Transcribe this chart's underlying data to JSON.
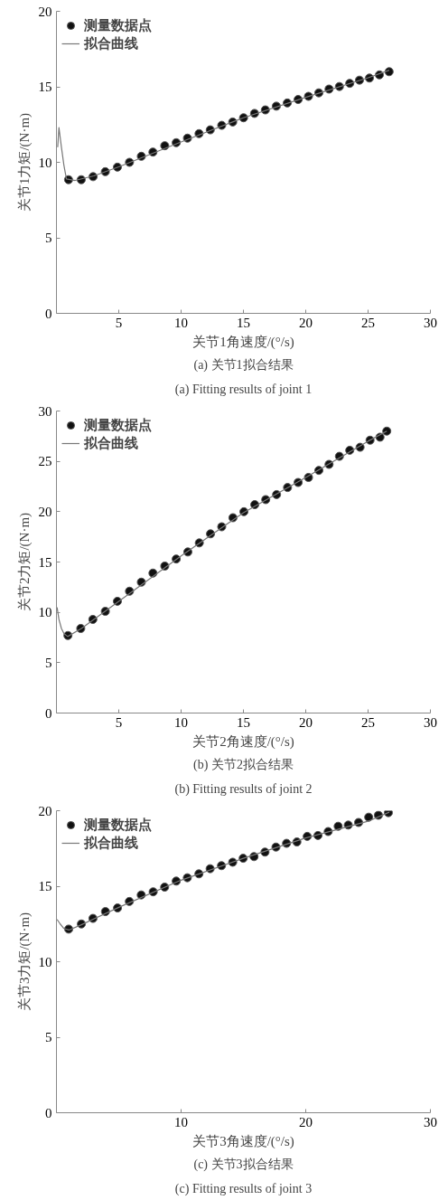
{
  "chart_data": [
    {
      "type": "scatter",
      "xlabel": "关节1角速度/(°/s)",
      "ylabel": "关节1力矩/(N·m)",
      "xlim": [
        0,
        30
      ],
      "ylim": [
        0,
        20
      ],
      "xticks": [
        5,
        10,
        15,
        20,
        25,
        30
      ],
      "yticks": [
        0,
        5,
        10,
        15,
        20
      ],
      "grid": false,
      "legend": "top left",
      "annotations": [
        "(a) 关节1拟合结果",
        "(a) Fitting results of joint 1"
      ],
      "series": [
        {
          "name": "测量数据点",
          "marker": "circle",
          "color": "#111111",
          "x": [
            0.97,
            1.99,
            2.94,
            3.92,
            4.89,
            5.86,
            6.81,
            7.74,
            8.69,
            9.61,
            10.51,
            11.44,
            12.34,
            13.26,
            14.14,
            15.01,
            15.89,
            16.76,
            17.64,
            18.52,
            19.39,
            20.22,
            21.05,
            21.87,
            22.7,
            23.53,
            24.31,
            25.11,
            25.91,
            26.69
          ],
          "values": [
            8.85,
            8.85,
            9.05,
            9.38,
            9.68,
            10.0,
            10.4,
            10.68,
            11.1,
            11.3,
            11.6,
            11.9,
            12.15,
            12.45,
            12.67,
            12.95,
            13.24,
            13.47,
            13.72,
            13.93,
            14.16,
            14.37,
            14.6,
            14.85,
            15.02,
            15.23,
            15.44,
            15.58,
            15.79,
            16.0
          ]
        },
        {
          "name": "拟合曲线",
          "type": "line",
          "color": "#777777",
          "x": [
            0.1,
            0.2,
            0.4,
            0.6,
            0.8,
            1.5,
            3.0,
            5.0,
            10.0,
            15.0,
            20.0,
            25.0,
            26.7
          ],
          "values": [
            11.0,
            12.3,
            11.0,
            9.8,
            8.9,
            8.8,
            9.1,
            9.7,
            11.35,
            12.95,
            14.3,
            15.6,
            16.1
          ]
        }
      ]
    },
    {
      "type": "scatter",
      "xlabel": "关节2角速度/(°/s)",
      "ylabel": "关节2力矩/(N·m)",
      "xlim": [
        0,
        30
      ],
      "ylim": [
        0,
        30
      ],
      "xticks": [
        5,
        10,
        15,
        20,
        25,
        30
      ],
      "yticks": [
        0,
        5,
        10,
        15,
        20,
        25,
        30
      ],
      "grid": false,
      "legend": "top left",
      "annotations": [
        "(b) 关节2拟合结果",
        "(b) Fitting results of joint 2"
      ],
      "series": [
        {
          "name": "测量数据点",
          "marker": "circle",
          "color": "#111111",
          "x": [
            0.92,
            1.95,
            2.92,
            3.92,
            4.89,
            5.86,
            6.81,
            7.74,
            8.69,
            9.61,
            10.54,
            11.46,
            12.36,
            13.26,
            14.16,
            15.04,
            15.91,
            16.79,
            17.66,
            18.54,
            19.39,
            20.22,
            21.05,
            21.87,
            22.7,
            23.53,
            24.36,
            25.16,
            25.96,
            26.5
          ],
          "values": [
            7.7,
            8.4,
            9.3,
            10.1,
            11.1,
            12.1,
            13.0,
            13.9,
            14.6,
            15.3,
            16.0,
            16.9,
            17.8,
            18.5,
            19.4,
            20.0,
            20.7,
            21.2,
            21.7,
            22.4,
            22.9,
            23.4,
            24.1,
            24.7,
            25.5,
            26.1,
            26.4,
            27.1,
            27.4,
            28.0
          ]
        },
        {
          "name": "拟合曲线",
          "type": "line",
          "color": "#777777",
          "x": [
            0.05,
            0.2,
            0.4,
            0.6,
            0.9,
            2.0,
            5.0,
            10.0,
            15.0,
            20.0,
            25.0,
            26.5
          ],
          "values": [
            10.5,
            9.3,
            8.4,
            7.9,
            7.6,
            8.4,
            11.1,
            15.6,
            19.9,
            23.4,
            27.0,
            28.0
          ]
        }
      ]
    },
    {
      "type": "scatter",
      "xlabel": "关节3角速度/(°/s)",
      "ylabel": "关节3力矩/(N·m)",
      "xlim": [
        0,
        30
      ],
      "ylim": [
        0,
        20
      ],
      "xticks": [
        10,
        20,
        30
      ],
      "yticks": [
        0,
        5,
        10,
        15,
        20
      ],
      "grid": false,
      "legend": "top left",
      "annotations": [
        "(c) 关节3拟合结果",
        "(c) Fitting results of joint 3"
      ],
      "series": [
        {
          "name": "测量数据点",
          "marker": "circle",
          "color": "#111111",
          "x": [
            0.98,
            2.0,
            2.93,
            3.93,
            4.9,
            5.85,
            6.8,
            7.76,
            8.68,
            9.61,
            10.5,
            11.43,
            12.33,
            13.24,
            14.14,
            14.98,
            15.85,
            16.73,
            17.61,
            18.46,
            19.29,
            20.12,
            20.98,
            21.8,
            22.6,
            23.41,
            24.24,
            25.05,
            25.83,
            26.63
          ],
          "values": [
            12.16,
            12.5,
            12.87,
            13.32,
            13.56,
            13.99,
            14.42,
            14.63,
            14.94,
            15.34,
            15.56,
            15.82,
            16.16,
            16.36,
            16.59,
            16.85,
            16.96,
            17.26,
            17.59,
            17.84,
            17.93,
            18.3,
            18.36,
            18.62,
            18.97,
            19.05,
            19.22,
            19.57,
            19.7,
            19.87
          ]
        },
        {
          "name": "拟合曲线",
          "type": "line",
          "color": "#777777",
          "x": [
            0.05,
            0.3,
            0.6,
            1.0,
            2.0,
            5.0,
            10.0,
            15.0,
            20.0,
            25.0,
            26.7
          ],
          "values": [
            12.8,
            12.5,
            12.2,
            12.1,
            12.45,
            13.6,
            15.4,
            16.85,
            18.2,
            19.3,
            19.9
          ]
        }
      ]
    }
  ]
}
